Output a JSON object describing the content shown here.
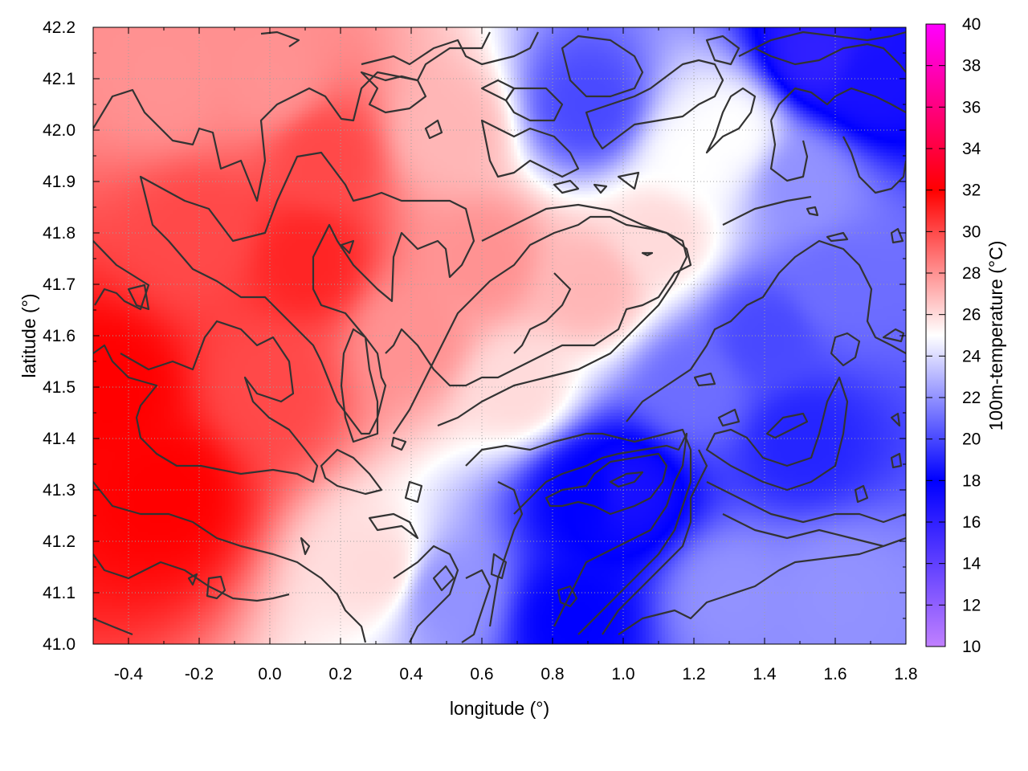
{
  "chart_data": {
    "type": "heatmap",
    "title": "",
    "xlabel": "longitude (°)",
    "ylabel": "latitude (°)",
    "colorbar_label": "100m-temperature (°C)",
    "xlim": [
      -0.5,
      1.8
    ],
    "ylim": [
      41.0,
      42.2
    ],
    "x_ticks": [
      "-0.4",
      "-0.2",
      "0.0",
      "0.2",
      "0.4",
      "0.6",
      "0.8",
      "1.0",
      "1.2",
      "1.4",
      "1.6",
      "1.8"
    ],
    "y_ticks": [
      "41.0",
      "41.1",
      "41.2",
      "41.3",
      "41.4",
      "41.5",
      "41.6",
      "41.7",
      "41.8",
      "41.9",
      "42.0",
      "42.1",
      "42.2"
    ],
    "colorbar_range": [
      10,
      40
    ],
    "colorbar_ticks": [
      "10",
      "12",
      "14",
      "16",
      "18",
      "20",
      "22",
      "24",
      "26",
      "28",
      "30",
      "32",
      "34",
      "36",
      "38",
      "40"
    ],
    "colormap": [
      {
        "value": 10,
        "color": "#c080ff"
      },
      {
        "value": 18,
        "color": "#0000ff"
      },
      {
        "value": 25,
        "color": "#ffffff"
      },
      {
        "value": 32,
        "color": "#ff0000"
      },
      {
        "value": 40,
        "color": "#ff00ff"
      }
    ],
    "grid": true,
    "field_samples": [
      {
        "lon": -0.45,
        "lat": 41.5,
        "temp": 32
      },
      {
        "lon": -0.3,
        "lat": 41.3,
        "temp": 32
      },
      {
        "lon": -0.2,
        "lat": 41.8,
        "temp": 30
      },
      {
        "lon": 0.1,
        "lat": 41.75,
        "temp": 31
      },
      {
        "lon": 0.0,
        "lat": 41.5,
        "temp": 30
      },
      {
        "lon": 0.15,
        "lat": 41.95,
        "temp": 30
      },
      {
        "lon": 0.0,
        "lat": 42.1,
        "temp": 28
      },
      {
        "lon": -0.3,
        "lat": 42.1,
        "temp": 28
      },
      {
        "lon": 0.4,
        "lat": 41.6,
        "temp": 28
      },
      {
        "lon": 0.6,
        "lat": 41.75,
        "temp": 28
      },
      {
        "lon": 0.5,
        "lat": 42.0,
        "temp": 27
      },
      {
        "lon": 0.9,
        "lat": 41.7,
        "temp": 27
      },
      {
        "lon": 1.1,
        "lat": 41.8,
        "temp": 26
      },
      {
        "lon": 0.3,
        "lat": 41.15,
        "temp": 26
      },
      {
        "lon": 0.7,
        "lat": 41.5,
        "temp": 26
      },
      {
        "lon": 0.5,
        "lat": 41.1,
        "temp": 22
      },
      {
        "lon": 0.9,
        "lat": 41.3,
        "temp": 18
      },
      {
        "lon": 1.0,
        "lat": 41.3,
        "temp": 17
      },
      {
        "lon": 0.85,
        "lat": 41.05,
        "temp": 18
      },
      {
        "lon": 1.2,
        "lat": 41.5,
        "temp": 21
      },
      {
        "lon": 1.4,
        "lat": 41.6,
        "temp": 20
      },
      {
        "lon": 1.5,
        "lat": 41.4,
        "temp": 19
      },
      {
        "lon": 1.6,
        "lat": 41.7,
        "temp": 21
      },
      {
        "lon": 1.5,
        "lat": 41.9,
        "temp": 22
      },
      {
        "lon": 1.55,
        "lat": 42.15,
        "temp": 16
      },
      {
        "lon": 1.7,
        "lat": 42.1,
        "temp": 17
      },
      {
        "lon": 1.6,
        "lat": 41.1,
        "temp": 22
      },
      {
        "lon": 1.3,
        "lat": 41.1,
        "temp": 22
      },
      {
        "lon": 0.9,
        "lat": 42.05,
        "temp": 20
      },
      {
        "lon": 1.3,
        "lat": 42.0,
        "temp": 25
      },
      {
        "lon": 1.2,
        "lat": 41.95,
        "temp": 25
      }
    ]
  }
}
